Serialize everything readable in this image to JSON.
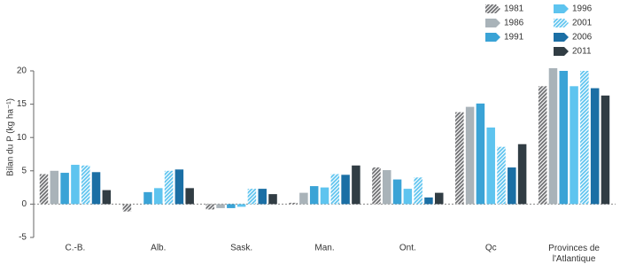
{
  "chart_data": {
    "type": "bar",
    "y_label": "Bilan du P (kg ha⁻¹)",
    "categories": [
      "C.-B.",
      "Alb.",
      "Sask.",
      "Man.",
      "Ont.",
      "Qc",
      "Provinces de l'Atlantique"
    ],
    "series": [
      {
        "name": "1981",
        "color": "#6d6e71",
        "hatch": true,
        "values": [
          4.5,
          -1.1,
          -0.8,
          0.2,
          5.5,
          13.8,
          17.7
        ]
      },
      {
        "name": "1986",
        "color": "#a9b3b9",
        "values": [
          5.0,
          0,
          -0.6,
          1.7,
          5.1,
          14.6,
          20.4
        ]
      },
      {
        "name": "1991",
        "color": "#3aa3d6",
        "values": [
          4.7,
          1.8,
          -0.6,
          2.7,
          3.7,
          15.1,
          20.0
        ]
      },
      {
        "name": "1996",
        "color": "#5ec4ef",
        "values": [
          5.9,
          2.4,
          -0.4,
          2.5,
          2.3,
          11.5,
          17.7
        ]
      },
      {
        "name": "2001",
        "color": "#5ec4ef",
        "hatch": true,
        "values": [
          5.8,
          5.0,
          2.3,
          4.5,
          4.0,
          8.6,
          20.0
        ]
      },
      {
        "name": "2006",
        "color": "#1b6fa5",
        "values": [
          4.8,
          5.2,
          2.3,
          4.4,
          1.0,
          5.5,
          17.4
        ]
      },
      {
        "name": "2011",
        "color": "#313d44",
        "values": [
          2.1,
          2.4,
          1.5,
          5.8,
          1.7,
          9.0,
          16.3
        ]
      }
    ],
    "ylim": [
      -5,
      20
    ],
    "yticks": [
      -5,
      0,
      5,
      10,
      15,
      20
    ],
    "grid": false
  }
}
